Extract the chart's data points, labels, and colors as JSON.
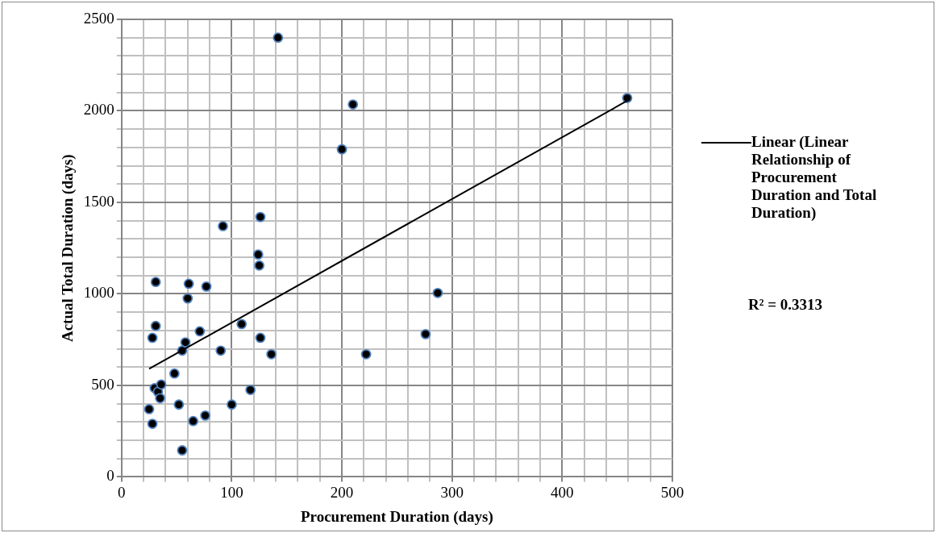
{
  "chart_data": {
    "type": "scatter",
    "xlabel": "Procurement Duration (days)",
    "ylabel": "Actual Total Duration (days)",
    "xlim": [
      0,
      500
    ],
    "ylim": [
      0,
      2500
    ],
    "xticks": [
      0,
      {
        "value": 20,
        "label": null
      },
      {
        "value": 40,
        "label": null
      },
      {
        "value": 60,
        "label": null
      },
      {
        "value": 80,
        "label": null
      },
      100,
      {
        "value": 120,
        "label": null
      },
      {
        "value": 140,
        "label": null
      },
      {
        "value": 160,
        "label": null
      },
      {
        "value": 180,
        "label": null
      },
      200,
      {
        "value": 220,
        "label": null
      },
      {
        "value": 240,
        "label": null
      },
      {
        "value": 260,
        "label": null
      },
      {
        "value": 280,
        "label": null
      },
      300,
      {
        "value": 320,
        "label": null
      },
      {
        "value": 340,
        "label": null
      },
      {
        "value": 360,
        "label": null
      },
      {
        "value": 380,
        "label": null
      },
      400,
      {
        "value": 420,
        "label": null
      },
      {
        "value": 440,
        "label": null
      },
      {
        "value": 460,
        "label": null
      },
      {
        "value": 480,
        "label": null
      },
      500
    ],
    "yticks": [
      0,
      {
        "value": 100,
        "label": null
      },
      {
        "value": 200,
        "label": null
      },
      {
        "value": 300,
        "label": null
      },
      {
        "value": 400,
        "label": null
      },
      500,
      {
        "value": 600,
        "label": null
      },
      {
        "value": 700,
        "label": null
      },
      {
        "value": 800,
        "label": null
      },
      {
        "value": 900,
        "label": null
      },
      1000,
      {
        "value": 1100,
        "label": null
      },
      {
        "value": 1200,
        "label": null
      },
      {
        "value": 1300,
        "label": null
      },
      {
        "value": 1400,
        "label": null
      },
      1500,
      {
        "value": 1600,
        "label": null
      },
      {
        "value": 1700,
        "label": null
      },
      {
        "value": 1800,
        "label": null
      },
      {
        "value": 1900,
        "label": null
      },
      2000,
      {
        "value": 2100,
        "label": null
      },
      {
        "value": 2200,
        "label": null
      },
      {
        "value": 2300,
        "label": null
      },
      {
        "value": 2400,
        "label": null
      },
      2500
    ],
    "grid": true,
    "legend": "right",
    "marker": "circle",
    "series": [
      {
        "color": "#000000",
        "x": [
          142,
          210,
          200,
          459,
          92,
          126,
          124,
          125,
          31,
          61,
          77,
          60,
          31,
          28,
          109,
          71,
          58,
          55,
          90,
          126,
          136,
          287,
          276,
          222,
          48,
          30,
          33,
          35,
          36,
          25,
          52,
          100,
          117,
          28,
          76,
          65,
          55
        ],
        "values": [
          2400,
          2035,
          1790,
          2070,
          1370,
          1420,
          1215,
          1155,
          1065,
          1055,
          1040,
          975,
          825,
          760,
          835,
          795,
          735,
          690,
          690,
          760,
          670,
          1005,
          780,
          670,
          565,
          485,
          465,
          430,
          505,
          370,
          395,
          395,
          475,
          290,
          335,
          305,
          145
        ]
      },
      {
        "type": "line",
        "name": "Linear (Linear Relationship of Procurement Duration and Total Duration)",
        "color": "#000000",
        "x": [
          25,
          459
        ],
        "values": [
          590,
          2055
        ],
        "line_style": "solid",
        "marker": "none"
      }
    ],
    "annotations": [
      "R² = 0.3313"
    ]
  }
}
